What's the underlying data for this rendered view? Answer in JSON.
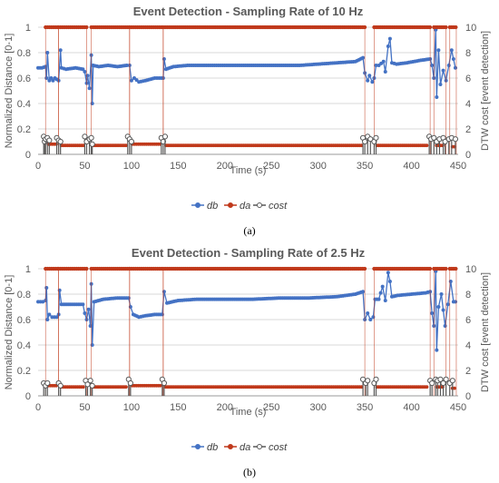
{
  "colors": {
    "db": "#4472C4",
    "da": "#C0391B",
    "cost": "#595959",
    "grid": "#D9D9D9"
  },
  "chart_data": [
    {
      "type": "line",
      "title": "Event Detection - Sampling Rate of 10 Hz",
      "xlabel": "Time (s)",
      "ylabel": "Normalized Distance [0-1]",
      "y2label": "DTW cost [event detection]",
      "xlim": [
        0,
        450
      ],
      "ylim": [
        0,
        1
      ],
      "y2lim": [
        0,
        10
      ],
      "x_ticks": [
        0,
        50,
        100,
        150,
        200,
        250,
        300,
        350,
        400,
        450
      ],
      "y_ticks": [
        0,
        0.2,
        0.4,
        0.6,
        0.8,
        1
      ],
      "y2_ticks": [
        0,
        2,
        4,
        6,
        8,
        10
      ],
      "grid": true,
      "legend": "bottom",
      "legend_labels": [
        "db",
        "da",
        "cost"
      ],
      "caption": "(a)",
      "series": [
        {
          "name": "db",
          "axis": "left",
          "points": [
            [
              0,
              0.68
            ],
            [
              4,
              0.68
            ],
            [
              8,
              0.69
            ],
            [
              9,
              0.6
            ],
            [
              10,
              0.8
            ],
            [
              12,
              0.58
            ],
            [
              14,
              0.6
            ],
            [
              16,
              0.58
            ],
            [
              18,
              0.6
            ],
            [
              22,
              0.58
            ],
            [
              24,
              0.82
            ],
            [
              25,
              0.68
            ],
            [
              30,
              0.67
            ],
            [
              40,
              0.68
            ],
            [
              48,
              0.67
            ],
            [
              50,
              0.65
            ],
            [
              52,
              0.56
            ],
            [
              53,
              0.62
            ],
            [
              55,
              0.52
            ],
            [
              57,
              0.78
            ],
            [
              58,
              0.4
            ],
            [
              59,
              0.7
            ],
            [
              65,
              0.69
            ],
            [
              75,
              0.7
            ],
            [
              85,
              0.69
            ],
            [
              95,
              0.7
            ],
            [
              98,
              0.7
            ],
            [
              100,
              0.58
            ],
            [
              103,
              0.6
            ],
            [
              108,
              0.57
            ],
            [
              115,
              0.58
            ],
            [
              125,
              0.6
            ],
            [
              132,
              0.6
            ],
            [
              134,
              0.6
            ],
            [
              135,
              0.75
            ],
            [
              137,
              0.67
            ],
            [
              145,
              0.69
            ],
            [
              160,
              0.7
            ],
            [
              180,
              0.7
            ],
            [
              200,
              0.7
            ],
            [
              220,
              0.7
            ],
            [
              250,
              0.7
            ],
            [
              280,
              0.7
            ],
            [
              300,
              0.71
            ],
            [
              320,
              0.72
            ],
            [
              340,
              0.73
            ],
            [
              348,
              0.76
            ],
            [
              350,
              0.64
            ],
            [
              353,
              0.58
            ],
            [
              355,
              0.62
            ],
            [
              358,
              0.57
            ],
            [
              360,
              0.6
            ],
            [
              362,
              0.7
            ],
            [
              365,
              0.7
            ],
            [
              370,
              0.73
            ],
            [
              372,
              0.65
            ],
            [
              375,
              0.85
            ],
            [
              377,
              0.91
            ],
            [
              379,
              0.72
            ],
            [
              384,
              0.71
            ],
            [
              395,
              0.72
            ],
            [
              410,
              0.74
            ],
            [
              420,
              0.75
            ],
            [
              422,
              0.7
            ],
            [
              424,
              0.6
            ],
            [
              426,
              0.98
            ],
            [
              427,
              0.45
            ],
            [
              429,
              0.82
            ],
            [
              431,
              0.55
            ],
            [
              434,
              0.66
            ],
            [
              437,
              0.58
            ],
            [
              440,
              0.7
            ],
            [
              443,
              0.82
            ],
            [
              447,
              0.68
            ],
            [
              449,
              0.68
            ]
          ]
        },
        {
          "name": "da",
          "axis": "right",
          "segments": [
            {
              "x": [
                8,
                22
              ],
              "top": 10,
              "mid": 0.8
            },
            {
              "x": [
                22,
                52
              ],
              "top": 10,
              "mid": 0.7
            },
            {
              "x": [
                57,
                98
              ],
              "top": 10,
              "mid": 0.7
            },
            {
              "x": [
                98,
                134
              ],
              "top": 10,
              "mid": 0.8
            },
            {
              "x": [
                134,
                350
              ],
              "top": 10,
              "mid": 0.7
            },
            {
              "x": [
                360,
                420
              ],
              "top": 10,
              "mid": 0.7
            },
            {
              "x": [
                424,
                437
              ],
              "top": 10,
              "mid": 0.7
            },
            {
              "x": [
                441,
                448
              ],
              "top": 10,
              "mid": 0.6
            }
          ]
        },
        {
          "name": "cost",
          "axis": "right",
          "spikes": [
            [
              6,
              1.4
            ],
            [
              7,
              1.0
            ],
            [
              8,
              1.2
            ],
            [
              10,
              1.3
            ],
            [
              12,
              1.1
            ],
            [
              20,
              1.3
            ],
            [
              22,
              1.1
            ],
            [
              24,
              1.0
            ],
            [
              50,
              1.4
            ],
            [
              52,
              1.0
            ],
            [
              55,
              1.2
            ],
            [
              57,
              1.3
            ],
            [
              58,
              0.8
            ],
            [
              96,
              1.4
            ],
            [
              98,
              1.2
            ],
            [
              100,
              1.0
            ],
            [
              132,
              1.3
            ],
            [
              134,
              1.0
            ],
            [
              136,
              1.4
            ],
            [
              348,
              1.3
            ],
            [
              350,
              1.0
            ],
            [
              353,
              1.4
            ],
            [
              356,
              1.2
            ],
            [
              360,
              1.0
            ],
            [
              362,
              1.3
            ],
            [
              419,
              1.4
            ],
            [
              421,
              1.2
            ],
            [
              424,
              1.3
            ],
            [
              427,
              1.0
            ],
            [
              430,
              1.2
            ],
            [
              434,
              1.3
            ],
            [
              436,
              1.0
            ],
            [
              440,
              1.2
            ],
            [
              443,
              1.3
            ],
            [
              447,
              1.2
            ]
          ]
        }
      ]
    },
    {
      "type": "line",
      "title": "Event Detection - Sampling Rate of 2.5 Hz",
      "xlabel": "Time (s)",
      "ylabel": "Normalized Distance [0-1]",
      "y2label": "DTW cost [event detection]",
      "xlim": [
        0,
        450
      ],
      "ylim": [
        0,
        1
      ],
      "y2lim": [
        0,
        10
      ],
      "x_ticks": [
        0,
        50,
        100,
        150,
        200,
        250,
        300,
        350,
        400,
        450
      ],
      "y_ticks": [
        0,
        0.2,
        0.4,
        0.6,
        0.8,
        1
      ],
      "y2_ticks": [
        0,
        2,
        4,
        6,
        8,
        10
      ],
      "grid": true,
      "legend": "bottom",
      "legend_labels": [
        "db",
        "da",
        "cost"
      ],
      "caption": "(b)",
      "series": [
        {
          "name": "db",
          "axis": "left",
          "points": [
            [
              0,
              0.74
            ],
            [
              5,
              0.74
            ],
            [
              8,
              0.75
            ],
            [
              9,
              0.85
            ],
            [
              10,
              0.6
            ],
            [
              12,
              0.64
            ],
            [
              15,
              0.62
            ],
            [
              20,
              0.62
            ],
            [
              22,
              0.64
            ],
            [
              23,
              0.83
            ],
            [
              25,
              0.72
            ],
            [
              35,
              0.72
            ],
            [
              48,
              0.72
            ],
            [
              50,
              0.65
            ],
            [
              52,
              0.6
            ],
            [
              54,
              0.68
            ],
            [
              56,
              0.55
            ],
            [
              57,
              0.88
            ],
            [
              58,
              0.4
            ],
            [
              60,
              0.74
            ],
            [
              70,
              0.76
            ],
            [
              85,
              0.77
            ],
            [
              97,
              0.77
            ],
            [
              99,
              0.7
            ],
            [
              102,
              0.64
            ],
            [
              108,
              0.62
            ],
            [
              115,
              0.63
            ],
            [
              125,
              0.64
            ],
            [
              133,
              0.64
            ],
            [
              135,
              0.82
            ],
            [
              138,
              0.73
            ],
            [
              150,
              0.75
            ],
            [
              170,
              0.76
            ],
            [
              200,
              0.76
            ],
            [
              230,
              0.76
            ],
            [
              260,
              0.77
            ],
            [
              290,
              0.77
            ],
            [
              320,
              0.78
            ],
            [
              340,
              0.8
            ],
            [
              348,
              0.82
            ],
            [
              350,
              0.6
            ],
            [
              353,
              0.65
            ],
            [
              356,
              0.6
            ],
            [
              359,
              0.62
            ],
            [
              361,
              0.76
            ],
            [
              365,
              0.76
            ],
            [
              369,
              0.86
            ],
            [
              372,
              0.75
            ],
            [
              375,
              0.97
            ],
            [
              377,
              0.9
            ],
            [
              379,
              0.78
            ],
            [
              385,
              0.79
            ],
            [
              400,
              0.8
            ],
            [
              415,
              0.81
            ],
            [
              420,
              0.82
            ],
            [
              422,
              0.65
            ],
            [
              424,
              0.55
            ],
            [
              426,
              0.98
            ],
            [
              427,
              0.36
            ],
            [
              429,
              0.7
            ],
            [
              432,
              0.8
            ],
            [
              436,
              0.55
            ],
            [
              439,
              0.72
            ],
            [
              442,
              0.9
            ],
            [
              445,
              0.74
            ],
            [
              449,
              0.74
            ]
          ]
        },
        {
          "name": "da",
          "axis": "right",
          "segments": [
            {
              "x": [
                8,
                22
              ],
              "top": 10,
              "mid": 0.8
            },
            {
              "x": [
                22,
                52
              ],
              "top": 10,
              "mid": 0.7
            },
            {
              "x": [
                57,
                98
              ],
              "top": 10,
              "mid": 0.7
            },
            {
              "x": [
                98,
                134
              ],
              "top": 10,
              "mid": 0.8
            },
            {
              "x": [
                134,
                350
              ],
              "top": 10,
              "mid": 0.7
            },
            {
              "x": [
                360,
                420
              ],
              "top": 10,
              "mid": 0.7
            },
            {
              "x": [
                424,
                437
              ],
              "top": 10,
              "mid": 0.7
            },
            {
              "x": [
                441,
                448
              ],
              "top": 10,
              "mid": 0.6
            }
          ]
        },
        {
          "name": "cost",
          "axis": "right",
          "spikes": [
            [
              6,
              1.0
            ],
            [
              8,
              0.8
            ],
            [
              10,
              1.0
            ],
            [
              22,
              1.0
            ],
            [
              24,
              0.8
            ],
            [
              51,
              1.2
            ],
            [
              53,
              0.9
            ],
            [
              56,
              1.2
            ],
            [
              58,
              0.8
            ],
            [
              97,
              1.3
            ],
            [
              99,
              1.0
            ],
            [
              133,
              1.3
            ],
            [
              135,
              1.0
            ],
            [
              348,
              1.3
            ],
            [
              351,
              1.0
            ],
            [
              353,
              1.2
            ],
            [
              360,
              1.0
            ],
            [
              362,
              1.3
            ],
            [
              420,
              1.2
            ],
            [
              422,
              1.0
            ],
            [
              426,
              1.3
            ],
            [
              428,
              1.2
            ],
            [
              431,
              1.3
            ],
            [
              434,
              1.0
            ],
            [
              437,
              1.3
            ],
            [
              441,
              1.0
            ],
            [
              444,
              1.2
            ]
          ]
        }
      ]
    }
  ]
}
